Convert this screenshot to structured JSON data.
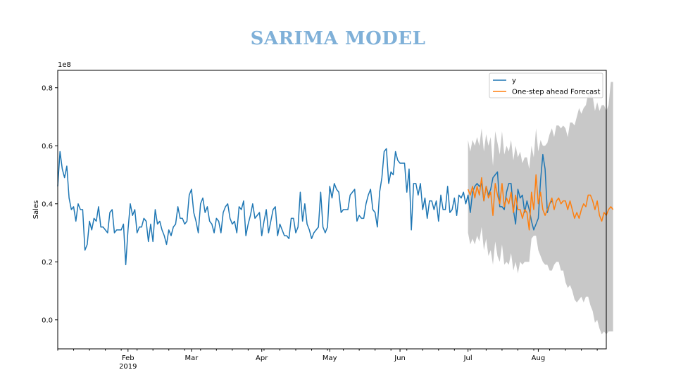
{
  "title": "SARIMA MODEL",
  "chart_data": {
    "type": "line",
    "title": "SARIMA MODEL",
    "xlabel": "",
    "ylabel": "Sales",
    "y_offset_label": "1e8",
    "ylim": [
      -0.1,
      0.86
    ],
    "yticks": [
      0.0,
      0.2,
      0.4,
      0.6,
      0.8
    ],
    "ytick_labels": [
      "0.0",
      "0.2",
      "0.4",
      "0.6",
      "0.8"
    ],
    "xlim": [
      "2019-01-01",
      "2019-08-31"
    ],
    "xticks": [
      {
        "date": "2019-02-01",
        "label": "Feb",
        "sublabel": "2019"
      },
      {
        "date": "2019-03-01",
        "label": "Mar",
        "sublabel": ""
      },
      {
        "date": "2019-04-01",
        "label": "Apr",
        "sublabel": ""
      },
      {
        "date": "2019-05-01",
        "label": "May",
        "sublabel": ""
      },
      {
        "date": "2019-06-01",
        "label": "Jun",
        "sublabel": ""
      },
      {
        "date": "2019-07-01",
        "label": "Jul",
        "sublabel": ""
      },
      {
        "date": "2019-08-01",
        "label": "Aug",
        "sublabel": ""
      }
    ],
    "legend": {
      "placement": "top-right",
      "entries": [
        "y",
        "One-step ahead Forecast"
      ]
    },
    "colors": {
      "y": "#1f77b4",
      "forecast": "#ff7f0e",
      "confidence": "#c8c8c8"
    },
    "series": [
      {
        "name": "y",
        "color": "#1f77b4",
        "start": "2019-01-01",
        "values": [
          0.46,
          0.58,
          0.52,
          0.49,
          0.53,
          0.42,
          0.38,
          0.39,
          0.34,
          0.4,
          0.38,
          0.38,
          0.24,
          0.26,
          0.34,
          0.31,
          0.35,
          0.34,
          0.39,
          0.32,
          0.32,
          0.31,
          0.3,
          0.37,
          0.38,
          0.3,
          0.31,
          0.31,
          0.31,
          0.33,
          0.19,
          0.31,
          0.4,
          0.36,
          0.38,
          0.3,
          0.32,
          0.32,
          0.35,
          0.34,
          0.27,
          0.33,
          0.27,
          0.38,
          0.33,
          0.34,
          0.31,
          0.29,
          0.26,
          0.31,
          0.29,
          0.32,
          0.33,
          0.39,
          0.35,
          0.35,
          0.33,
          0.34,
          0.43,
          0.45,
          0.37,
          0.34,
          0.3,
          0.4,
          0.42,
          0.37,
          0.39,
          0.34,
          0.33,
          0.3,
          0.35,
          0.34,
          0.3,
          0.37,
          0.39,
          0.4,
          0.35,
          0.33,
          0.34,
          0.3,
          0.39,
          0.38,
          0.41,
          0.29,
          0.33,
          0.36,
          0.4,
          0.35,
          0.36,
          0.37,
          0.29,
          0.34,
          0.38,
          0.3,
          0.34,
          0.38,
          0.39,
          0.29,
          0.33,
          0.31,
          0.29,
          0.29,
          0.28,
          0.35,
          0.35,
          0.3,
          0.32,
          0.44,
          0.34,
          0.4,
          0.33,
          0.31,
          0.28,
          0.3,
          0.31,
          0.32,
          0.44,
          0.32,
          0.3,
          0.32,
          0.46,
          0.42,
          0.47,
          0.45,
          0.44,
          0.37,
          0.38,
          0.38,
          0.38,
          0.43,
          0.44,
          0.45,
          0.34,
          0.36,
          0.35,
          0.35,
          0.4,
          0.43,
          0.45,
          0.38,
          0.37,
          0.32,
          0.44,
          0.49,
          0.58,
          0.59,
          0.47,
          0.51,
          0.5,
          0.58,
          0.55,
          0.54,
          0.54,
          0.54,
          0.44,
          0.52,
          0.31,
          0.47,
          0.47,
          0.43,
          0.47,
          0.38,
          0.42,
          0.35,
          0.41,
          0.41,
          0.38,
          0.41,
          0.34,
          0.43,
          0.38,
          0.38,
          0.46,
          0.37,
          0.38,
          0.42,
          0.36,
          0.43,
          0.42,
          0.44,
          0.4,
          0.43,
          0.37,
          0.44,
          0.46,
          0.47,
          0.46,
          0.47,
          0.41,
          0.46,
          0.43,
          0.45,
          0.49,
          0.5,
          0.51,
          0.39,
          0.39,
          0.38,
          0.44,
          0.47,
          0.47,
          0.38,
          0.33,
          0.45,
          0.42,
          0.43,
          0.37,
          0.41,
          0.38,
          0.34,
          0.31,
          0.33,
          0.35,
          0.48,
          0.57,
          0.52,
          0.37,
          0.4,
          0.41
        ]
      },
      {
        "name": "One-step ahead Forecast",
        "color": "#ff7f0e",
        "start": "2019-07-01",
        "values": [
          0.45,
          0.43,
          0.46,
          0.42,
          0.46,
          0.43,
          0.49,
          0.41,
          0.46,
          0.42,
          0.44,
          0.36,
          0.47,
          0.43,
          0.4,
          0.47,
          0.39,
          0.42,
          0.4,
          0.44,
          0.37,
          0.43,
          0.38,
          0.38,
          0.35,
          0.38,
          0.37,
          0.31,
          0.44,
          0.38,
          0.5,
          0.4,
          0.44,
          0.38,
          0.36,
          0.38,
          0.4,
          0.42,
          0.38,
          0.41,
          0.42,
          0.4,
          0.41,
          0.41,
          0.38,
          0.41,
          0.38,
          0.35,
          0.37,
          0.35,
          0.38,
          0.4,
          0.39,
          0.43,
          0.43,
          0.41,
          0.38,
          0.41,
          0.36,
          0.34,
          0.37,
          0.36,
          0.38,
          0.39,
          0.38
        ]
      }
    ],
    "confidence_interval": {
      "start": "2019-07-01",
      "lower": [
        0.3,
        0.26,
        0.28,
        0.26,
        0.29,
        0.27,
        0.32,
        0.24,
        0.28,
        0.22,
        0.24,
        0.19,
        0.27,
        0.22,
        0.2,
        0.26,
        0.19,
        0.2,
        0.19,
        0.23,
        0.17,
        0.2,
        0.16,
        0.2,
        0.19,
        0.2,
        0.2,
        0.2,
        0.28,
        0.29,
        0.29,
        0.24,
        0.22,
        0.2,
        0.19,
        0.19,
        0.17,
        0.17,
        0.19,
        0.2,
        0.2,
        0.17,
        0.17,
        0.13,
        0.11,
        0.12,
        0.1,
        0.07,
        0.06,
        0.07,
        0.08,
        0.06,
        0.08,
        0.08,
        0.05,
        0.03,
        -0.01,
        0.0,
        -0.03,
        -0.05,
        -0.04,
        -0.05,
        -0.04,
        -0.04,
        -0.04
      ],
      "upper": [
        0.62,
        0.58,
        0.62,
        0.6,
        0.63,
        0.6,
        0.66,
        0.58,
        0.64,
        0.6,
        0.63,
        0.53,
        0.65,
        0.61,
        0.57,
        0.65,
        0.57,
        0.6,
        0.58,
        0.62,
        0.55,
        0.6,
        0.56,
        0.58,
        0.54,
        0.56,
        0.56,
        0.52,
        0.6,
        0.56,
        0.66,
        0.58,
        0.62,
        0.6,
        0.6,
        0.61,
        0.64,
        0.66,
        0.63,
        0.67,
        0.67,
        0.66,
        0.67,
        0.66,
        0.63,
        0.68,
        0.68,
        0.67,
        0.7,
        0.73,
        0.71,
        0.73,
        0.74,
        0.78,
        0.78,
        0.77,
        0.72,
        0.75,
        0.72,
        0.74,
        0.74,
        0.72,
        0.74,
        0.82,
        0.82
      ]
    }
  }
}
